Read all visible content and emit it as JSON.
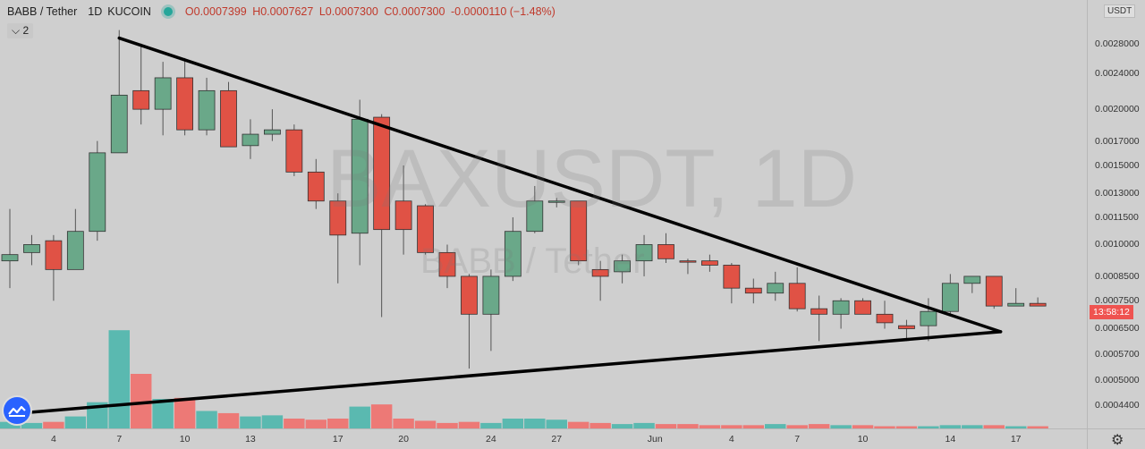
{
  "header": {
    "symbol": "BABB / Tether",
    "timeframe": "1D",
    "exchange": "KUCOIN",
    "open": "O0.0007399",
    "high": "H0.0007627",
    "low": "L0.0007300",
    "close": "C0.0007300",
    "change": "-0.0000110 (−1.48%)",
    "indicator_count": "2"
  },
  "watermark": {
    "main": "BAXUSDT, 1D",
    "sub": "BABB / Tether"
  },
  "price_axis": {
    "unit": "USDT",
    "ticks": [
      "0.0028000",
      "0.0024000",
      "0.0020000",
      "0.0017000",
      "0.0015000",
      "0.0013000",
      "0.0011500",
      "0.0010000",
      "0.0008500",
      "0.0007500",
      "0.0006500",
      "0.0005700",
      "0.0005000",
      "0.0004400"
    ],
    "countdown": "13:58:12"
  },
  "time_axis": {
    "labels": [
      "4",
      "7",
      "10",
      "13",
      "17",
      "20",
      "24",
      "27",
      "Jun",
      "4",
      "7",
      "10",
      "14",
      "17"
    ]
  },
  "colors": {
    "up": "#6aa889",
    "down": "#e05245",
    "vol_up": "#4db6ac",
    "vol_down": "#ef6f6c",
    "badge": "#ef5350",
    "trendline": "#000000"
  },
  "icons": {
    "logo": "tradingview-logo-icon",
    "settings": "gear-icon",
    "status": "live-dot-icon",
    "collapse": "chevron-down-icon"
  },
  "chart_data": {
    "type": "candlestick",
    "scale": "log",
    "ylim": [
      0.00039,
      0.0035
    ],
    "ohlc": [
      [
        0.00092,
        0.0012,
        0.0008,
        0.00095
      ],
      [
        0.00096,
        0.00105,
        0.0009,
        0.001
      ],
      [
        0.00102,
        0.00105,
        0.00075,
        0.00088
      ],
      [
        0.00088,
        0.0012,
        0.00088,
        0.00107
      ],
      [
        0.00107,
        0.0017,
        0.00102,
        0.0016
      ],
      [
        0.0016,
        0.003,
        0.0016,
        0.00215
      ],
      [
        0.0022,
        0.0028,
        0.00185,
        0.002
      ],
      [
        0.002,
        0.00255,
        0.00175,
        0.00235
      ],
      [
        0.00235,
        0.0026,
        0.00175,
        0.0018
      ],
      [
        0.0018,
        0.00235,
        0.00175,
        0.0022
      ],
      [
        0.0022,
        0.0023,
        0.00165,
        0.00165
      ],
      [
        0.00166,
        0.0019,
        0.00155,
        0.00176
      ],
      [
        0.00176,
        0.002,
        0.0017,
        0.0018
      ],
      [
        0.0018,
        0.00185,
        0.00142,
        0.00145
      ],
      [
        0.00145,
        0.00155,
        0.0012,
        0.00125
      ],
      [
        0.00125,
        0.0013,
        0.00082,
        0.00105
      ],
      [
        0.00106,
        0.0021,
        0.0009,
        0.0019
      ],
      [
        0.00192,
        0.00195,
        0.00069,
        0.00108
      ],
      [
        0.00125,
        0.0015,
        0.00095,
        0.00108
      ],
      [
        0.00122,
        0.00123,
        0.00095,
        0.00096
      ],
      [
        0.00096,
        0.001,
        0.0008,
        0.00085
      ],
      [
        0.00085,
        0.00086,
        0.00053,
        0.0007
      ],
      [
        0.0007,
        0.00088,
        0.00058,
        0.00085
      ],
      [
        0.00085,
        0.00115,
        0.00083,
        0.00107
      ],
      [
        0.00107,
        0.00135,
        0.00106,
        0.00125
      ],
      [
        0.00125,
        0.00127,
        0.00121,
        0.00125
      ],
      [
        0.00125,
        0.00125,
        0.0009,
        0.00092
      ],
      [
        0.00088,
        0.00092,
        0.00075,
        0.00085
      ],
      [
        0.00087,
        0.00095,
        0.00082,
        0.00092
      ],
      [
        0.00092,
        0.00105,
        0.00085,
        0.001
      ],
      [
        0.001,
        0.00106,
        0.00091,
        0.00093
      ],
      [
        0.00092,
        0.00093,
        0.00086,
        0.000915
      ],
      [
        0.00092,
        0.00095,
        0.00087,
        0.0009
      ],
      [
        0.0009,
        0.00091,
        0.00074,
        0.0008
      ],
      [
        0.0008,
        0.00084,
        0.00074,
        0.00078
      ],
      [
        0.00078,
        0.00087,
        0.00075,
        0.00082
      ],
      [
        0.00082,
        0.00089,
        0.00071,
        0.00072
      ],
      [
        0.00072,
        0.00077,
        0.00061,
        0.0007
      ],
      [
        0.0007,
        0.00076,
        0.00065,
        0.00075
      ],
      [
        0.00075,
        0.00076,
        0.0007,
        0.0007
      ],
      [
        0.0007,
        0.00075,
        0.00065,
        0.00067
      ],
      [
        0.00066,
        0.00068,
        0.00061,
        0.00065
      ],
      [
        0.00066,
        0.00076,
        0.00061,
        0.00071
      ],
      [
        0.00071,
        0.00086,
        0.0007,
        0.00082
      ],
      [
        0.00082,
        0.00085,
        0.00078,
        0.00085
      ],
      [
        0.00085,
        0.00085,
        0.00072,
        0.00073
      ],
      [
        0.00073,
        0.0008,
        0.00073,
        0.00074
      ],
      [
        0.00074,
        0.000763,
        0.00073,
        0.00073
      ]
    ],
    "volume_relative": [
      0.06,
      0.05,
      0.06,
      0.11,
      0.24,
      0.9,
      0.5,
      0.27,
      0.28,
      0.16,
      0.14,
      0.11,
      0.12,
      0.09,
      0.08,
      0.09,
      0.2,
      0.22,
      0.09,
      0.07,
      0.05,
      0.06,
      0.05,
      0.09,
      0.09,
      0.08,
      0.06,
      0.05,
      0.04,
      0.05,
      0.04,
      0.04,
      0.03,
      0.03,
      0.03,
      0.04,
      0.03,
      0.04,
      0.03,
      0.03,
      0.02,
      0.02,
      0.02,
      0.03,
      0.03,
      0.03,
      0.02,
      0.02
    ],
    "trendlines": [
      {
        "from": {
          "bar": 5,
          "price": 0.00288
        },
        "to": {
          "bar": 45.3,
          "price": 0.00064
        }
      },
      {
        "from": {
          "bar": 0,
          "price": 0.00042
        },
        "to": {
          "bar": 45.3,
          "price": 0.00064
        }
      }
    ]
  }
}
